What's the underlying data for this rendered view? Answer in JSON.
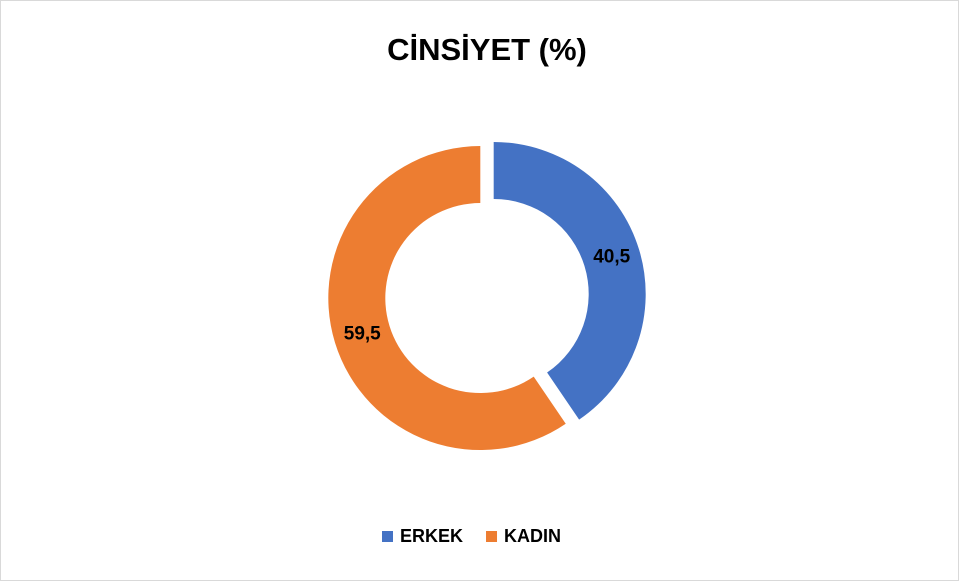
{
  "chart_data": {
    "type": "donut",
    "title": "CİNSİYET (%)",
    "categories": [
      "ERKEK",
      "KADIN"
    ],
    "values": [
      40.5,
      59.5
    ],
    "value_labels": [
      "40,5",
      "59,5"
    ],
    "colors": [
      "#4472c4",
      "#ed7d31"
    ],
    "legend": "bottom"
  }
}
